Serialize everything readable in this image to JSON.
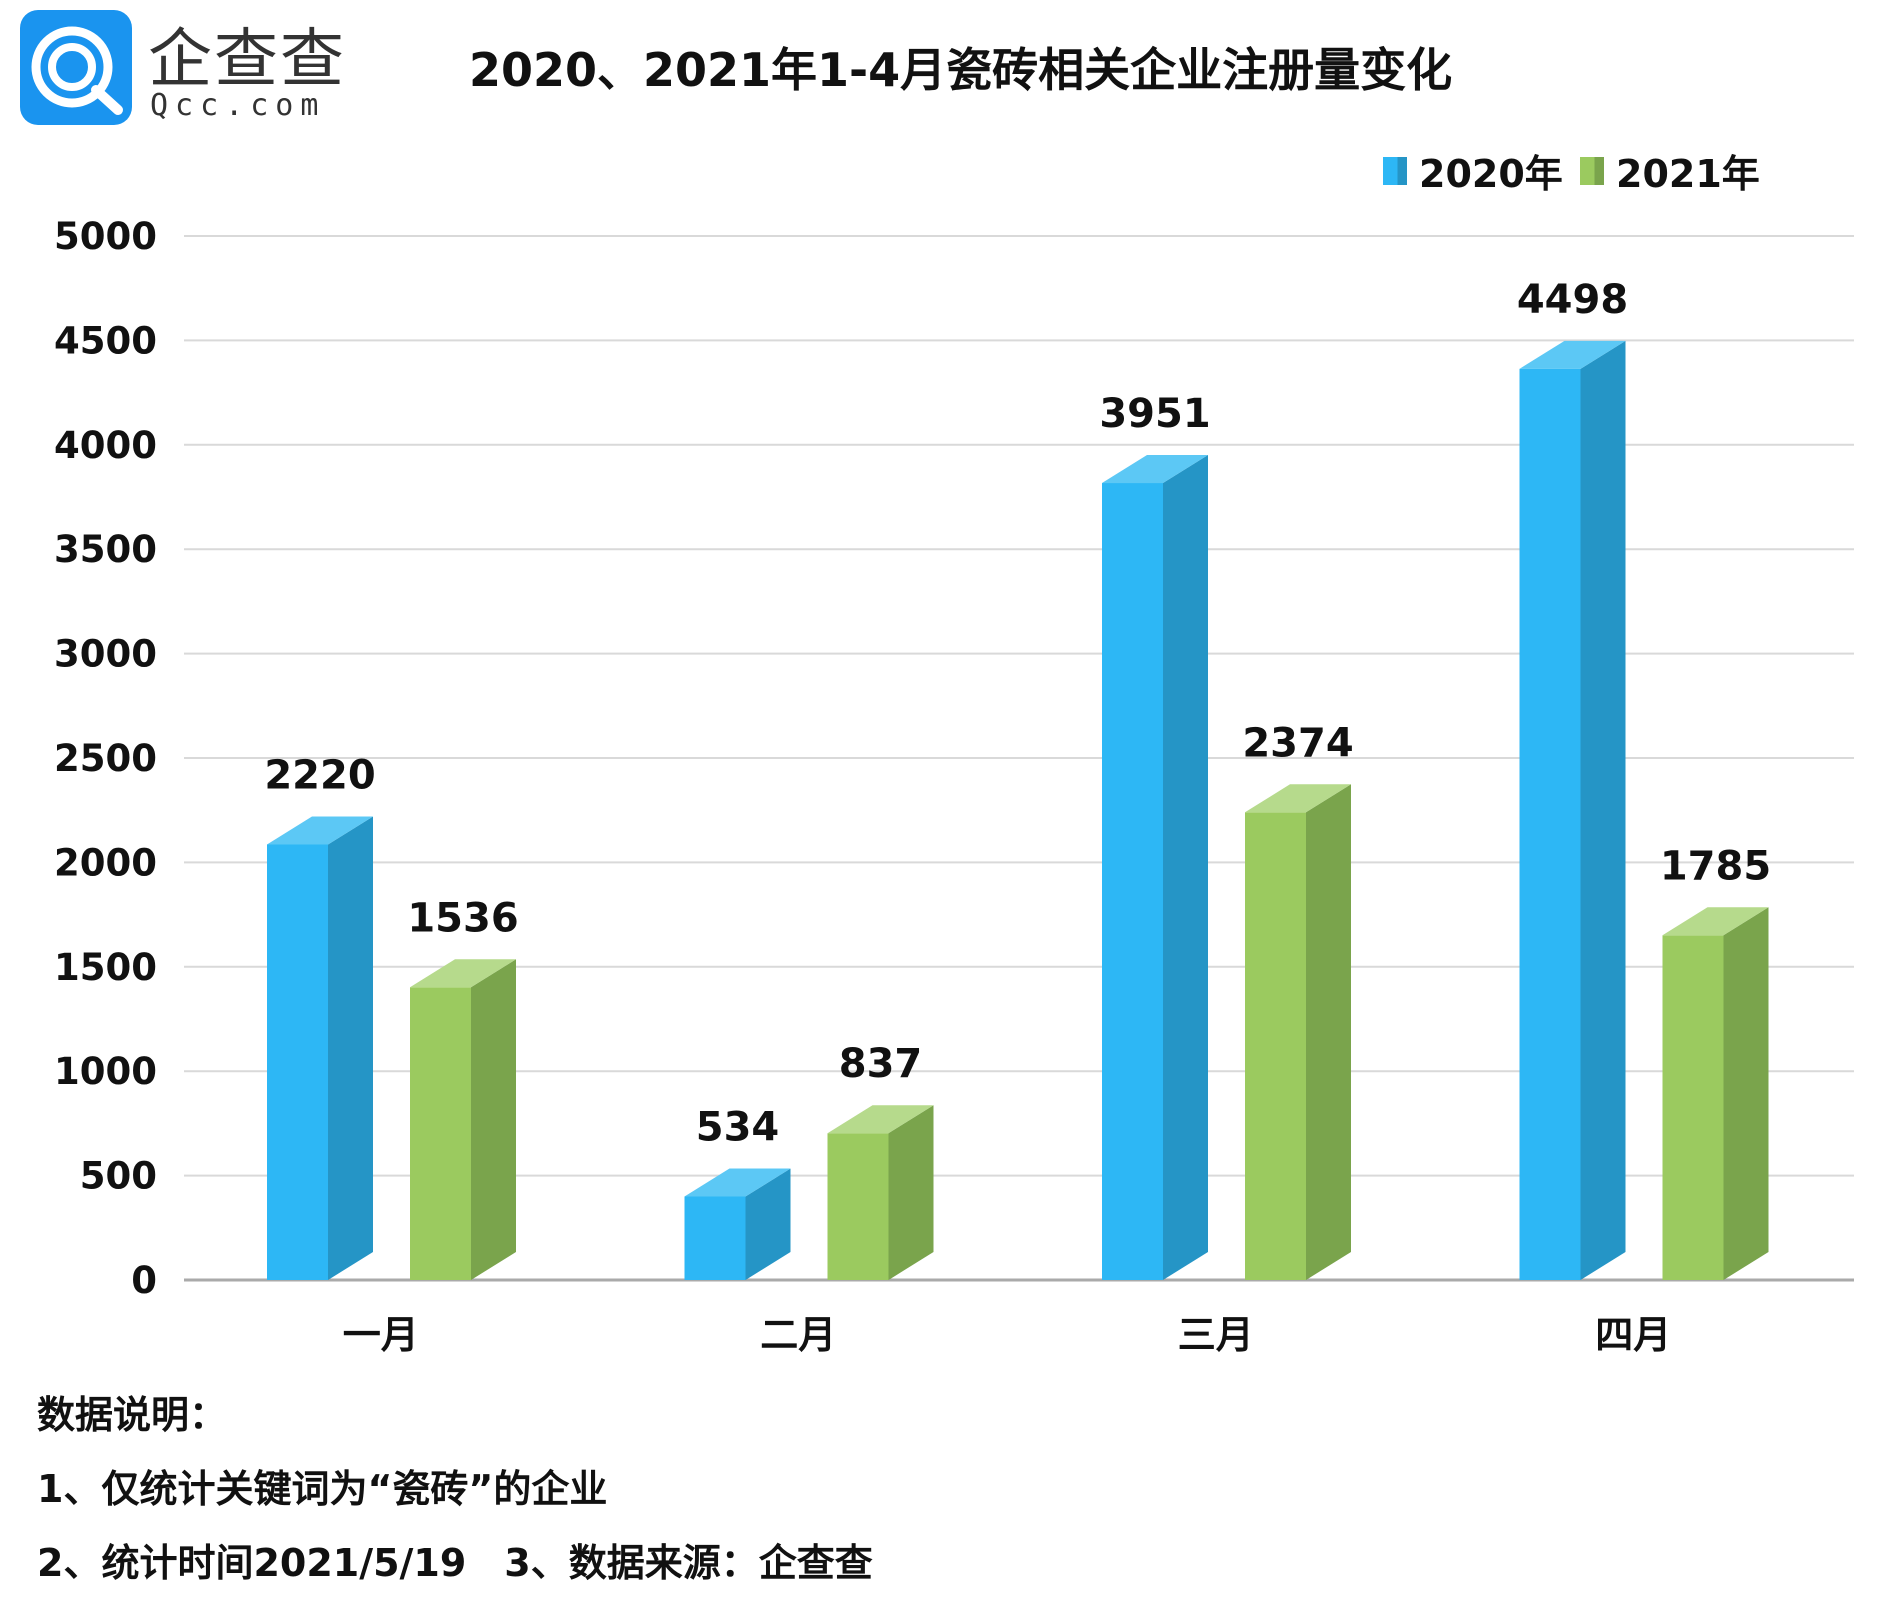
{
  "logo": {
    "name_cn": "企查查",
    "name_en": "Qcc.com"
  },
  "chart_data": {
    "type": "bar",
    "title": "2020、2021年1-4月瓷砖相关企业注册量变化",
    "categories": [
      "一月",
      "二月",
      "三月",
      "四月"
    ],
    "series": [
      {
        "name": "2020年",
        "values": [
          2220,
          534,
          3951,
          4498
        ],
        "color": "#2db7f5",
        "side": "#2595c6",
        "top": "#5cc8f5"
      },
      {
        "name": "2021年",
        "values": [
          1536,
          837,
          2374,
          1785
        ],
        "color": "#9bca5f",
        "side": "#7aa44c",
        "top": "#b6da8c"
      }
    ],
    "ylim": [
      0,
      5000
    ],
    "yticks": [
      "0",
      "500",
      "1000",
      "1500",
      "2000",
      "2500",
      "3000",
      "3500",
      "4000",
      "4500",
      "5000"
    ],
    "xlabel": "",
    "ylabel": "",
    "grid": true,
    "legend": "top-right"
  },
  "notes": {
    "heading": "数据说明：",
    "line1": "1、仅统计关键词为“瓷砖”的企业",
    "line2": "2、统计时间2021/5/19　3、数据来源：企查查"
  }
}
